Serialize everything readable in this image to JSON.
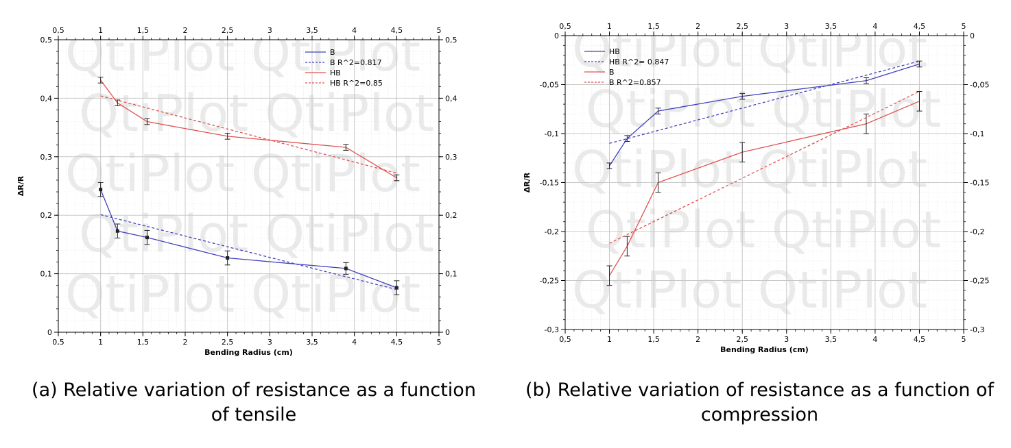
{
  "captions": {
    "a": "(a) Relative variation of resistance as a function of tensile",
    "b": "(b) Relative variation of resistance as a function of compression"
  },
  "watermark": "QtiPlot",
  "chart_data": [
    {
      "id": "a",
      "type": "line",
      "xlabel": "Bending Radius (cm)",
      "ylabel": "ΔR/R",
      "xlim": [
        0.5,
        5
      ],
      "ylim": [
        0,
        0.5
      ],
      "x_ticks": [
        0.5,
        1,
        1.5,
        2,
        2.5,
        3,
        3.5,
        4,
        4.5,
        5
      ],
      "x_tick_labels": [
        "0,5",
        "1",
        "1,5",
        "2",
        "2,5",
        "3",
        "3,5",
        "4",
        "4,5",
        "5"
      ],
      "y_ticks": [
        0,
        0.1,
        0.2,
        0.3,
        0.4,
        0.5
      ],
      "y_tick_labels": [
        "0",
        "0,1",
        "0,2",
        "0,3",
        "0,4",
        "0,5"
      ],
      "grid": true,
      "legend_position": "top-right",
      "series": [
        {
          "name": "B",
          "color": "#4040c0",
          "style": "solid",
          "markers": true,
          "x": [
            1,
            1.2,
            1.55,
            2.5,
            3.9,
            4.5
          ],
          "y": [
            0.244,
            0.173,
            0.162,
            0.127,
            0.109,
            0.076
          ],
          "err": [
            0.012,
            0.012,
            0.012,
            0.012,
            0.01,
            0.012
          ]
        },
        {
          "name": "B R^2=0.817",
          "color": "#4040c0",
          "style": "dashed",
          "x": [
            1,
            4.5
          ],
          "y": [
            0.201,
            0.073
          ]
        },
        {
          "name": "HB",
          "color": "#e05050",
          "style": "solid",
          "markers": false,
          "x": [
            1,
            1.2,
            1.55,
            2.5,
            3.9,
            4.5
          ],
          "y": [
            0.431,
            0.392,
            0.36,
            0.335,
            0.316,
            0.264
          ],
          "err": [
            0.005,
            0.005,
            0.005,
            0.005,
            0.005,
            0.005
          ]
        },
        {
          "name": "HB R^2=0.85",
          "color": "#e05050",
          "style": "dashed",
          "x": [
            1,
            4.5
          ],
          "y": [
            0.404,
            0.272
          ]
        }
      ]
    },
    {
      "id": "b",
      "type": "line",
      "xlabel": "Bending Radius (cm)",
      "ylabel": "ΔR/R",
      "xlim": [
        0.5,
        5
      ],
      "ylim": [
        -0.3,
        0
      ],
      "x_ticks": [
        0.5,
        1,
        1.5,
        2,
        2.5,
        3,
        3.5,
        4,
        4.5,
        5
      ],
      "x_tick_labels": [
        "0,5",
        "1",
        "1,5",
        "2",
        "2,5",
        "3",
        "3,5",
        "4",
        "4,5",
        "5"
      ],
      "y_ticks": [
        -0.3,
        -0.25,
        -0.2,
        -0.15,
        -0.1,
        -0.05,
        0
      ],
      "y_tick_labels": [
        "-0,3",
        "-0,25",
        "-0,2",
        "-0,15",
        "-0,1",
        "-0,05",
        "0"
      ],
      "grid": true,
      "legend_position": "top-left",
      "series": [
        {
          "name": "HB",
          "color": "#4040c0",
          "style": "solid",
          "markers": false,
          "x": [
            1,
            1.2,
            1.55,
            2.5,
            3.9,
            4.5
          ],
          "y": [
            -0.133,
            -0.105,
            -0.077,
            -0.062,
            -0.046,
            -0.029
          ],
          "err": [
            0.003,
            0.003,
            0.003,
            0.003,
            0.003,
            0.003
          ]
        },
        {
          "name": "HB R^2= 0.847",
          "color": "#4040c0",
          "style": "dashed",
          "x": [
            1,
            4.5
          ],
          "y": [
            -0.11,
            -0.026
          ]
        },
        {
          "name": "B",
          "color": "#e05050",
          "style": "solid",
          "markers": false,
          "x": [
            1,
            1.2,
            1.55,
            2.5,
            3.9,
            4.5
          ],
          "y": [
            -0.245,
            -0.215,
            -0.15,
            -0.119,
            -0.09,
            -0.067
          ],
          "err": [
            0.01,
            0.01,
            0.01,
            0.01,
            0.01,
            0.01
          ]
        },
        {
          "name": "B R^2=0.857",
          "color": "#e05050",
          "style": "dashed",
          "x": [
            1,
            4.5
          ],
          "y": [
            -0.212,
            -0.057
          ]
        }
      ]
    }
  ]
}
